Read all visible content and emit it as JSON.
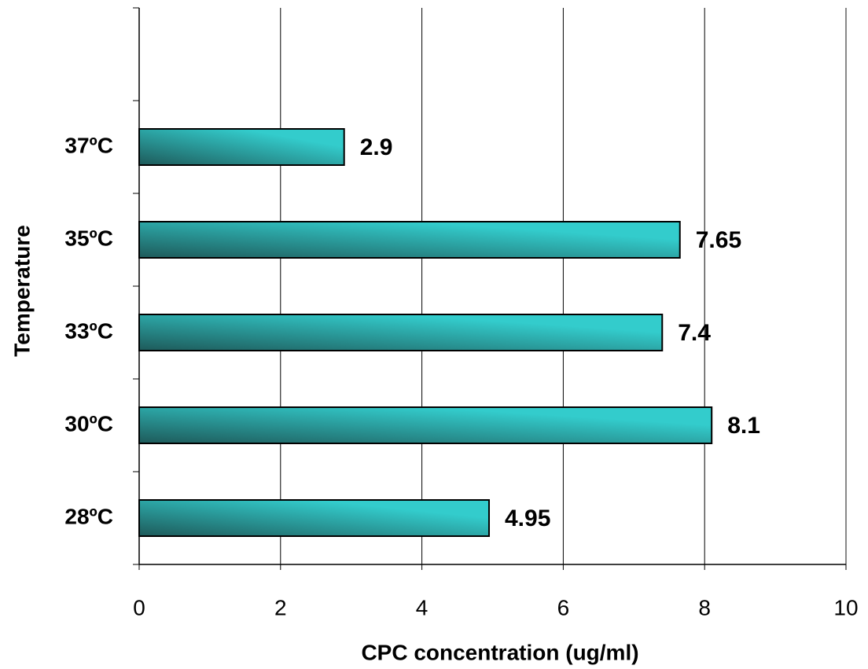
{
  "chart_data": {
    "type": "bar",
    "orientation": "horizontal",
    "x_label": "CPC concentration (ug/ml)",
    "y_label": "Temperature",
    "categories": [
      "28ºC",
      "30ºC",
      "33ºC",
      "35ºC",
      "37ºC",
      null
    ],
    "values": [
      4.95,
      8.1,
      7.4,
      7.65,
      2.9,
      null
    ],
    "color": "#33cccc",
    "xlim": [
      0,
      10
    ],
    "xticks": [
      0,
      2,
      4,
      6,
      8,
      10
    ],
    "grid": true
  }
}
